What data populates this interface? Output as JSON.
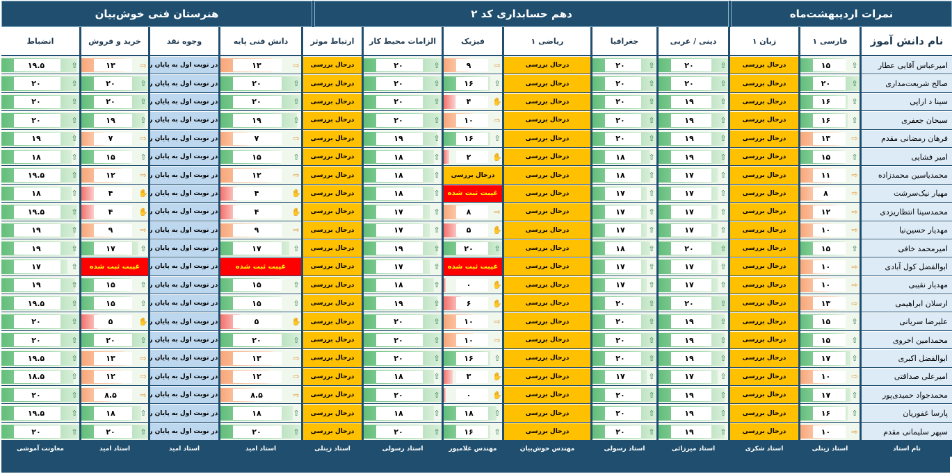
{
  "banner": {
    "left": "هنرستان فنی خوش‌بیان",
    "middle": "دهم حسابداری کد ۲",
    "right": "نمرات اردیبهشت‌ماه"
  },
  "columns": [
    {
      "key": "name",
      "label": "نام دانش آموز",
      "teacher": "نام استاد"
    },
    {
      "key": "farsi",
      "label": "فارسی ۱",
      "teacher": "استاد زینلی"
    },
    {
      "key": "english",
      "label": "زبان ۱",
      "teacher": "استاد شکری"
    },
    {
      "key": "dini",
      "label": "دینی / عربی",
      "teacher": "استاد میرزائی"
    },
    {
      "key": "geo",
      "label": "جغرافیا",
      "teacher": "استاد رسولی"
    },
    {
      "key": "math",
      "label": "ریاضی ۱",
      "teacher": "مهندس خوش‌بیان"
    },
    {
      "key": "physics",
      "label": "فیزیک",
      "teacher": "مهندس غلامپور"
    },
    {
      "key": "workplace",
      "label": "الزامات محیط کار",
      "teacher": "استاد رسولی"
    },
    {
      "key": "comm",
      "label": "ارتباط موثر",
      "teacher": "استاد زینلی"
    },
    {
      "key": "basic",
      "label": "دانش فنی پایه",
      "teacher": "استاد امید"
    },
    {
      "key": "cash",
      "label": "وجوه نقد",
      "teacher": "استاد امید"
    },
    {
      "key": "trade",
      "label": "خرید و فروش",
      "teacher": "استاد امید"
    },
    {
      "key": "discipline",
      "label": "انضباط",
      "teacher": "معاونت آموشی"
    }
  ],
  "status_labels": {
    "pending": "درحال بررسی",
    "absent": "غیبت ثبت شده",
    "ended": "درس در نوبت اول به پایان رسیده"
  },
  "colors": {
    "header_bg": "#1f4e6e",
    "name_bg": "#ddebf7",
    "pending": "#ffc000",
    "absent": "#ff0000",
    "ended": "#bdd7ee",
    "icon_up": "#2e7d4f",
    "icon_right": "#e39a3c",
    "icon_down": "#c0392b"
  },
  "icons": {
    "up": "arrow-up-icon",
    "right": "arrow-right-icon",
    "down": "thumbs-down-icon"
  },
  "rows": [
    {
      "name": "امیرعباس آقایی عطار",
      "farsi": "۱۵",
      "english": "P",
      "dini": "۲۰",
      "geo": "۲۰",
      "math": "P",
      "physics": "۹",
      "workplace": "۲۰",
      "comm": "P",
      "basic": "۱۳",
      "cash": "E",
      "trade": "۱۳",
      "discipline": "۱۹.۵"
    },
    {
      "name": "صالح شریعت‌مداری",
      "farsi": "۲۰",
      "english": "P",
      "dini": "۲۰",
      "geo": "۲۰",
      "math": "P",
      "physics": "۱۶",
      "workplace": "۲۰",
      "comm": "P",
      "basic": "۲۰",
      "cash": "E",
      "trade": "۲۰",
      "discipline": "۲۰"
    },
    {
      "name": "سینا د اراپی",
      "farsi": "۱۶",
      "english": "P",
      "dini": "۱۹",
      "geo": "۲۰",
      "math": "P",
      "physics": "۴",
      "workplace": "۲۰",
      "comm": "P",
      "basic": "۲۰",
      "cash": "E",
      "trade": "۲۰",
      "discipline": "۲۰"
    },
    {
      "name": "سبحان جعفری",
      "farsi": "۱۶",
      "english": "P",
      "dini": "۱۹",
      "geo": "۲۰",
      "math": "P",
      "physics": "۱۰",
      "workplace": "۲۰",
      "comm": "P",
      "basic": "۱۹",
      "cash": "E",
      "trade": "۱۹",
      "discipline": "۲۰"
    },
    {
      "name": "فرهان رمضانی مقدم",
      "farsi": "۱۳",
      "english": "P",
      "dini": "۱۹",
      "geo": "۲۰",
      "math": "P",
      "physics": "۱۶",
      "workplace": "۱۹",
      "comm": "P",
      "basic": "۷",
      "cash": "E",
      "trade": "۷",
      "discipline": "۱۹"
    },
    {
      "name": "امیر فشایی",
      "farsi": "۱۵",
      "english": "P",
      "dini": "۱۹",
      "geo": "۱۸",
      "math": "P",
      "physics": "۲",
      "workplace": "۱۸",
      "comm": "P",
      "basic": "۱۵",
      "cash": "E",
      "trade": "۱۵",
      "discipline": "۱۸"
    },
    {
      "name": "محمدیاسین محمدزاده",
      "farsi": "۱۱",
      "english": "P",
      "dini": "۱۷",
      "geo": "۱۸",
      "math": "P",
      "physics": "P",
      "workplace": "۱۸",
      "comm": "P",
      "basic": "۱۲",
      "cash": "E",
      "trade": "۱۲",
      "discipline": "۱۹.۵"
    },
    {
      "name": "مهیار نیک‌سرشت",
      "farsi": "۸",
      "english": "P",
      "dini": "۱۷",
      "geo": "۱۷",
      "math": "P",
      "physics": "A",
      "workplace": "۱۸",
      "comm": "P",
      "basic": "۴",
      "cash": "E",
      "trade": "۴",
      "discipline": "۱۸"
    },
    {
      "name": "محمدسینا انتظاریزدی",
      "farsi": "۱۲",
      "english": "P",
      "dini": "۱۷",
      "geo": "۱۷",
      "math": "P",
      "physics": "۸",
      "workplace": "۱۷",
      "comm": "P",
      "basic": "۴",
      "cash": "E",
      "trade": "۴",
      "discipline": "۱۹.۵"
    },
    {
      "name": "مهدیار حسین‌نیا",
      "farsi": "۱۰",
      "english": "P",
      "dini": "۱۷",
      "geo": "۱۷",
      "math": "P",
      "physics": "۵",
      "workplace": "۱۷",
      "comm": "P",
      "basic": "۹",
      "cash": "E",
      "trade": "۹",
      "discipline": "۱۹"
    },
    {
      "name": "امیرمحمد خافی",
      "farsi": "۱۵",
      "english": "P",
      "dini": "۲۰",
      "geo": "۱۸",
      "math": "P",
      "physics": "۲۰",
      "workplace": "۱۹",
      "comm": "P",
      "basic": "۱۷",
      "cash": "E",
      "trade": "۱۷",
      "discipline": "۱۹"
    },
    {
      "name": "ابوالفضل کول آبادی",
      "farsi": "۱۰",
      "english": "P",
      "dini": "۱۷",
      "geo": "۱۷",
      "math": "P",
      "physics": "A",
      "workplace": "۱۷",
      "comm": "P",
      "basic": "A",
      "cash": "E",
      "trade": "A",
      "discipline": "۱۷"
    },
    {
      "name": "مهدیار نقیبی",
      "farsi": "۱۰",
      "english": "P",
      "dini": "۱۷",
      "geo": "۱۷",
      "math": "P",
      "physics": "۰",
      "workplace": "۱۸",
      "comm": "P",
      "basic": "۱۵",
      "cash": "E",
      "trade": "۱۵",
      "discipline": "۱۹"
    },
    {
      "name": "ارسلان ابراهیمی",
      "farsi": "۱۳",
      "english": "P",
      "dini": "۲۰",
      "geo": "۲۰",
      "math": "P",
      "physics": "۶",
      "workplace": "۱۹",
      "comm": "P",
      "basic": "۱۵",
      "cash": "E",
      "trade": "۱۵",
      "discipline": "۱۹.۵"
    },
    {
      "name": "علیرضا سریانی",
      "farsi": "۱۵",
      "english": "P",
      "dini": "۱۹",
      "geo": "۲۰",
      "math": "P",
      "physics": "۱۰",
      "workplace": "۲۰",
      "comm": "P",
      "basic": "۵",
      "cash": "E",
      "trade": "۵",
      "discipline": "۲۰"
    },
    {
      "name": "محمدامین اخروی",
      "farsi": "۱۵",
      "english": "P",
      "dini": "۱۹",
      "geo": "۲۰",
      "math": "P",
      "physics": "۱۰",
      "workplace": "۲۰",
      "comm": "P",
      "basic": "۲۰",
      "cash": "E",
      "trade": "۲۰",
      "discipline": "۲۰"
    },
    {
      "name": "ابوالفضل اکبری",
      "farsi": "۱۷",
      "english": "P",
      "dini": "۱۹",
      "geo": "۲۰",
      "math": "P",
      "physics": "۱۶",
      "workplace": "۲۰",
      "comm": "P",
      "basic": "۱۳",
      "cash": "E",
      "trade": "۱۳",
      "discipline": "۱۹.۵"
    },
    {
      "name": "امیرعلی صداقتی",
      "farsi": "۱۰",
      "english": "P",
      "dini": "۱۷",
      "geo": "۱۷",
      "math": "P",
      "physics": "۳",
      "workplace": "۱۸",
      "comm": "P",
      "basic": "۱۲",
      "cash": "E",
      "trade": "۱۲",
      "discipline": "۱۸.۵"
    },
    {
      "name": "محمدجواد حمیدی‌پور",
      "farsi": "۱۷",
      "english": "P",
      "dini": "۱۹",
      "geo": "۲۰",
      "math": "P",
      "physics": "۰",
      "workplace": "۲۰",
      "comm": "P",
      "basic": "۸.۵",
      "cash": "E",
      "trade": "۸.۵",
      "discipline": "۲۰"
    },
    {
      "name": "پارسا غفوریان",
      "farsi": "۱۶",
      "english": "P",
      "dini": "۱۹",
      "geo": "۲۰",
      "math": "P",
      "physics": "۱۸",
      "workplace": "۱۸",
      "comm": "P",
      "basic": "۱۸",
      "cash": "E",
      "trade": "۱۸",
      "discipline": "۱۹.۵"
    },
    {
      "name": "سپهر سلیمانی مقدم",
      "farsi": "۱۰",
      "english": "P",
      "dini": "۱۹",
      "geo": "۲۰",
      "math": "P",
      "physics": "۱۶",
      "workplace": "۲۰",
      "comm": "P",
      "basic": "۲۰",
      "cash": "E",
      "trade": "۲۰",
      "discipline": "۲۰"
    }
  ]
}
